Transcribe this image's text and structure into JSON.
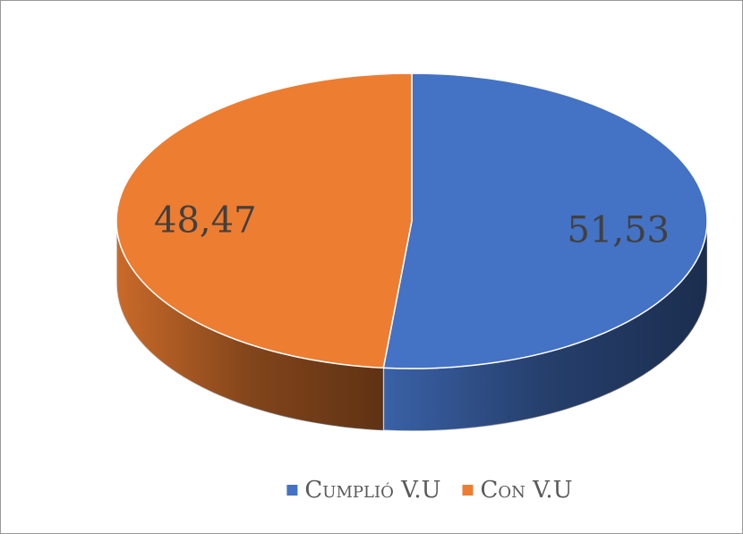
{
  "chart_data": {
    "type": "pie",
    "categories": [
      "Cumplió V.U",
      "Con V.U"
    ],
    "values": [
      51.53,
      48.47
    ],
    "value_labels": [
      "51,53",
      "48,47"
    ],
    "colors": [
      "#4472c4",
      "#ed7d31"
    ],
    "legend": "bottom"
  }
}
